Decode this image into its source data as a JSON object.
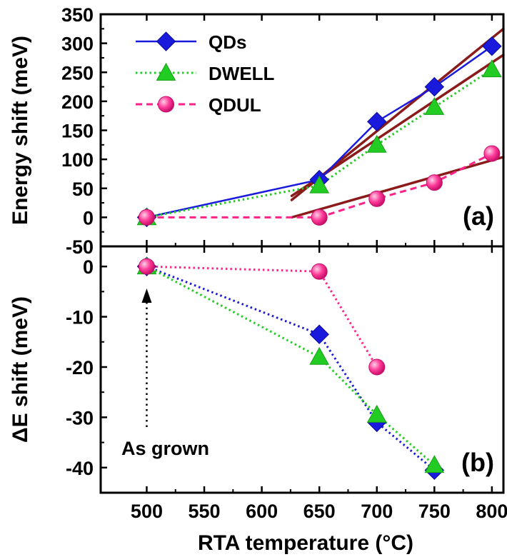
{
  "chart_data": [
    {
      "panel": "(a)",
      "type": "line",
      "xlabel": "RTA temperature (°C)",
      "ylabel": "Energy shift (meV)",
      "xlim": [
        460,
        810
      ],
      "ylim": [
        -50,
        350
      ],
      "xticks": [
        500,
        550,
        600,
        650,
        700,
        750,
        800
      ],
      "yticks": [
        -50,
        0,
        50,
        100,
        150,
        200,
        250,
        300,
        350
      ],
      "legend_position": "top-left",
      "series": [
        {
          "name": "QDs",
          "color": "#1a1adc",
          "marker": "diamond",
          "line_style": "solid",
          "x": [
            500,
            650,
            700,
            750,
            800
          ],
          "y": [
            0,
            65,
            165,
            225,
            295
          ]
        },
        {
          "name": "DWELL",
          "color": "#22cc22",
          "marker": "triangle",
          "line_style": "dotted",
          "x": [
            500,
            650,
            700,
            750,
            800
          ],
          "y": [
            0,
            55,
            125,
            190,
            255
          ]
        },
        {
          "name": "QDUL",
          "color": "#ff2288",
          "marker": "circle",
          "line_style": "dashed",
          "x": [
            500,
            650,
            700,
            750,
            800
          ],
          "y": [
            0,
            0,
            32,
            60,
            110
          ]
        }
      ],
      "fit_lines": {
        "color": "#8b1a1a",
        "lines": [
          {
            "x": [
              626,
              810
            ],
            "y": [
              30,
              325
            ]
          },
          {
            "x": [
              626,
              810
            ],
            "y": [
              37,
              280
            ]
          },
          {
            "x": [
              626,
              810
            ],
            "y": [
              0,
              104
            ]
          }
        ]
      }
    },
    {
      "panel": "(b)",
      "type": "line",
      "xlabel": "RTA temperature (°C)",
      "ylabel": "ΔE shift (meV)",
      "xlim": [
        460,
        810
      ],
      "ylim": [
        -45,
        4
      ],
      "xticks": [
        500,
        550,
        600,
        650,
        700,
        750,
        800
      ],
      "yticks": [
        0,
        -10,
        -20,
        -30,
        -40
      ],
      "annotation": "As grown",
      "series": [
        {
          "name": "QDs",
          "color": "#1a1adc",
          "marker": "diamond",
          "line_style": "dotted",
          "x": [
            500,
            650,
            700,
            750
          ],
          "y": [
            0,
            -13.5,
            -31,
            -40.5
          ]
        },
        {
          "name": "DWELL",
          "color": "#22cc22",
          "marker": "triangle",
          "line_style": "dotted",
          "x": [
            500,
            650,
            700,
            750
          ],
          "y": [
            0,
            -18,
            -29.5,
            -39.5
          ]
        },
        {
          "name": "QDUL",
          "color": "#ff2288",
          "marker": "circle",
          "line_style": "dotted",
          "x": [
            500,
            650,
            700
          ],
          "y": [
            0,
            -1,
            -20
          ]
        }
      ]
    }
  ]
}
